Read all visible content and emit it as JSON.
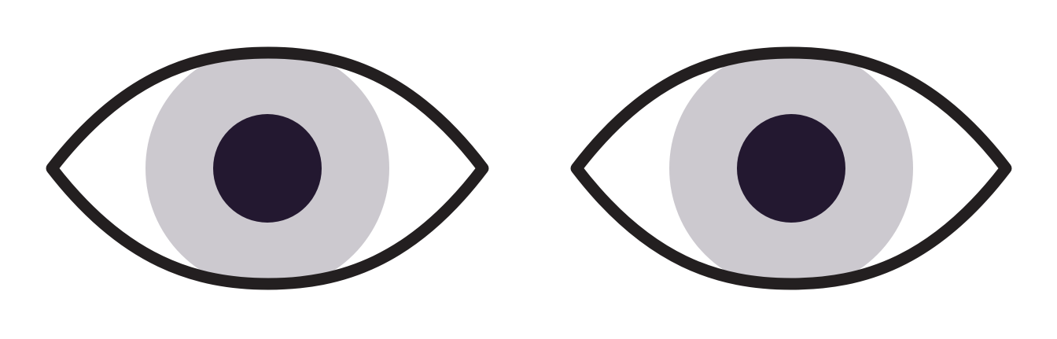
{
  "illustration": {
    "eyes": [
      {
        "side": "left"
      },
      {
        "side": "right"
      }
    ]
  },
  "colors": {
    "background": "#ffffff",
    "outline": "#231f20",
    "iris": "#cccac f",
    "pupil": "#231830"
  },
  "icons": [
    "eye-icon",
    "eye-icon"
  ]
}
